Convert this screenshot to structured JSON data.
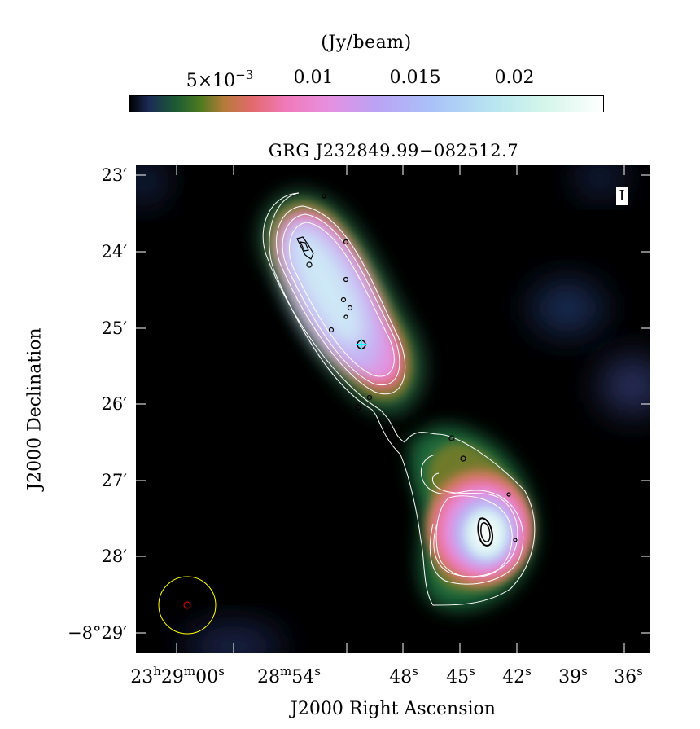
{
  "colorbar": {
    "unit_label": "(Jy/beam)",
    "tick_labels": [
      {
        "mantissa": "5×10",
        "exponent": "−3"
      },
      {
        "text": "0.01"
      },
      {
        "text": "0.015"
      },
      {
        "text": "0.02"
      }
    ]
  },
  "plot": {
    "title": "GRG J232849.99−082512.7",
    "stokes": "I",
    "y_axis_title": "J2000 Declination",
    "x_axis_title": "J2000 Right Ascension",
    "y_ticks": [
      "23′",
      "24′",
      "25′",
      "26′",
      "27′",
      "28′",
      "−8°29′"
    ],
    "x_ticks": [
      {
        "hours": "23",
        "minutes": "29",
        "seconds": "00"
      },
      {
        "minutes": "28",
        "seconds": "54"
      },
      {
        "seconds": "48"
      },
      {
        "seconds": "45"
      },
      {
        "seconds": "42"
      },
      {
        "seconds": "39"
      },
      {
        "seconds": "36"
      }
    ]
  },
  "colors": {
    "background": "#000000",
    "contour_white": "#ffffff",
    "contour_black": "#000000",
    "beam_outer": "#ffff00",
    "beam_inner": "#ff0000",
    "marker": "#00ffff"
  }
}
